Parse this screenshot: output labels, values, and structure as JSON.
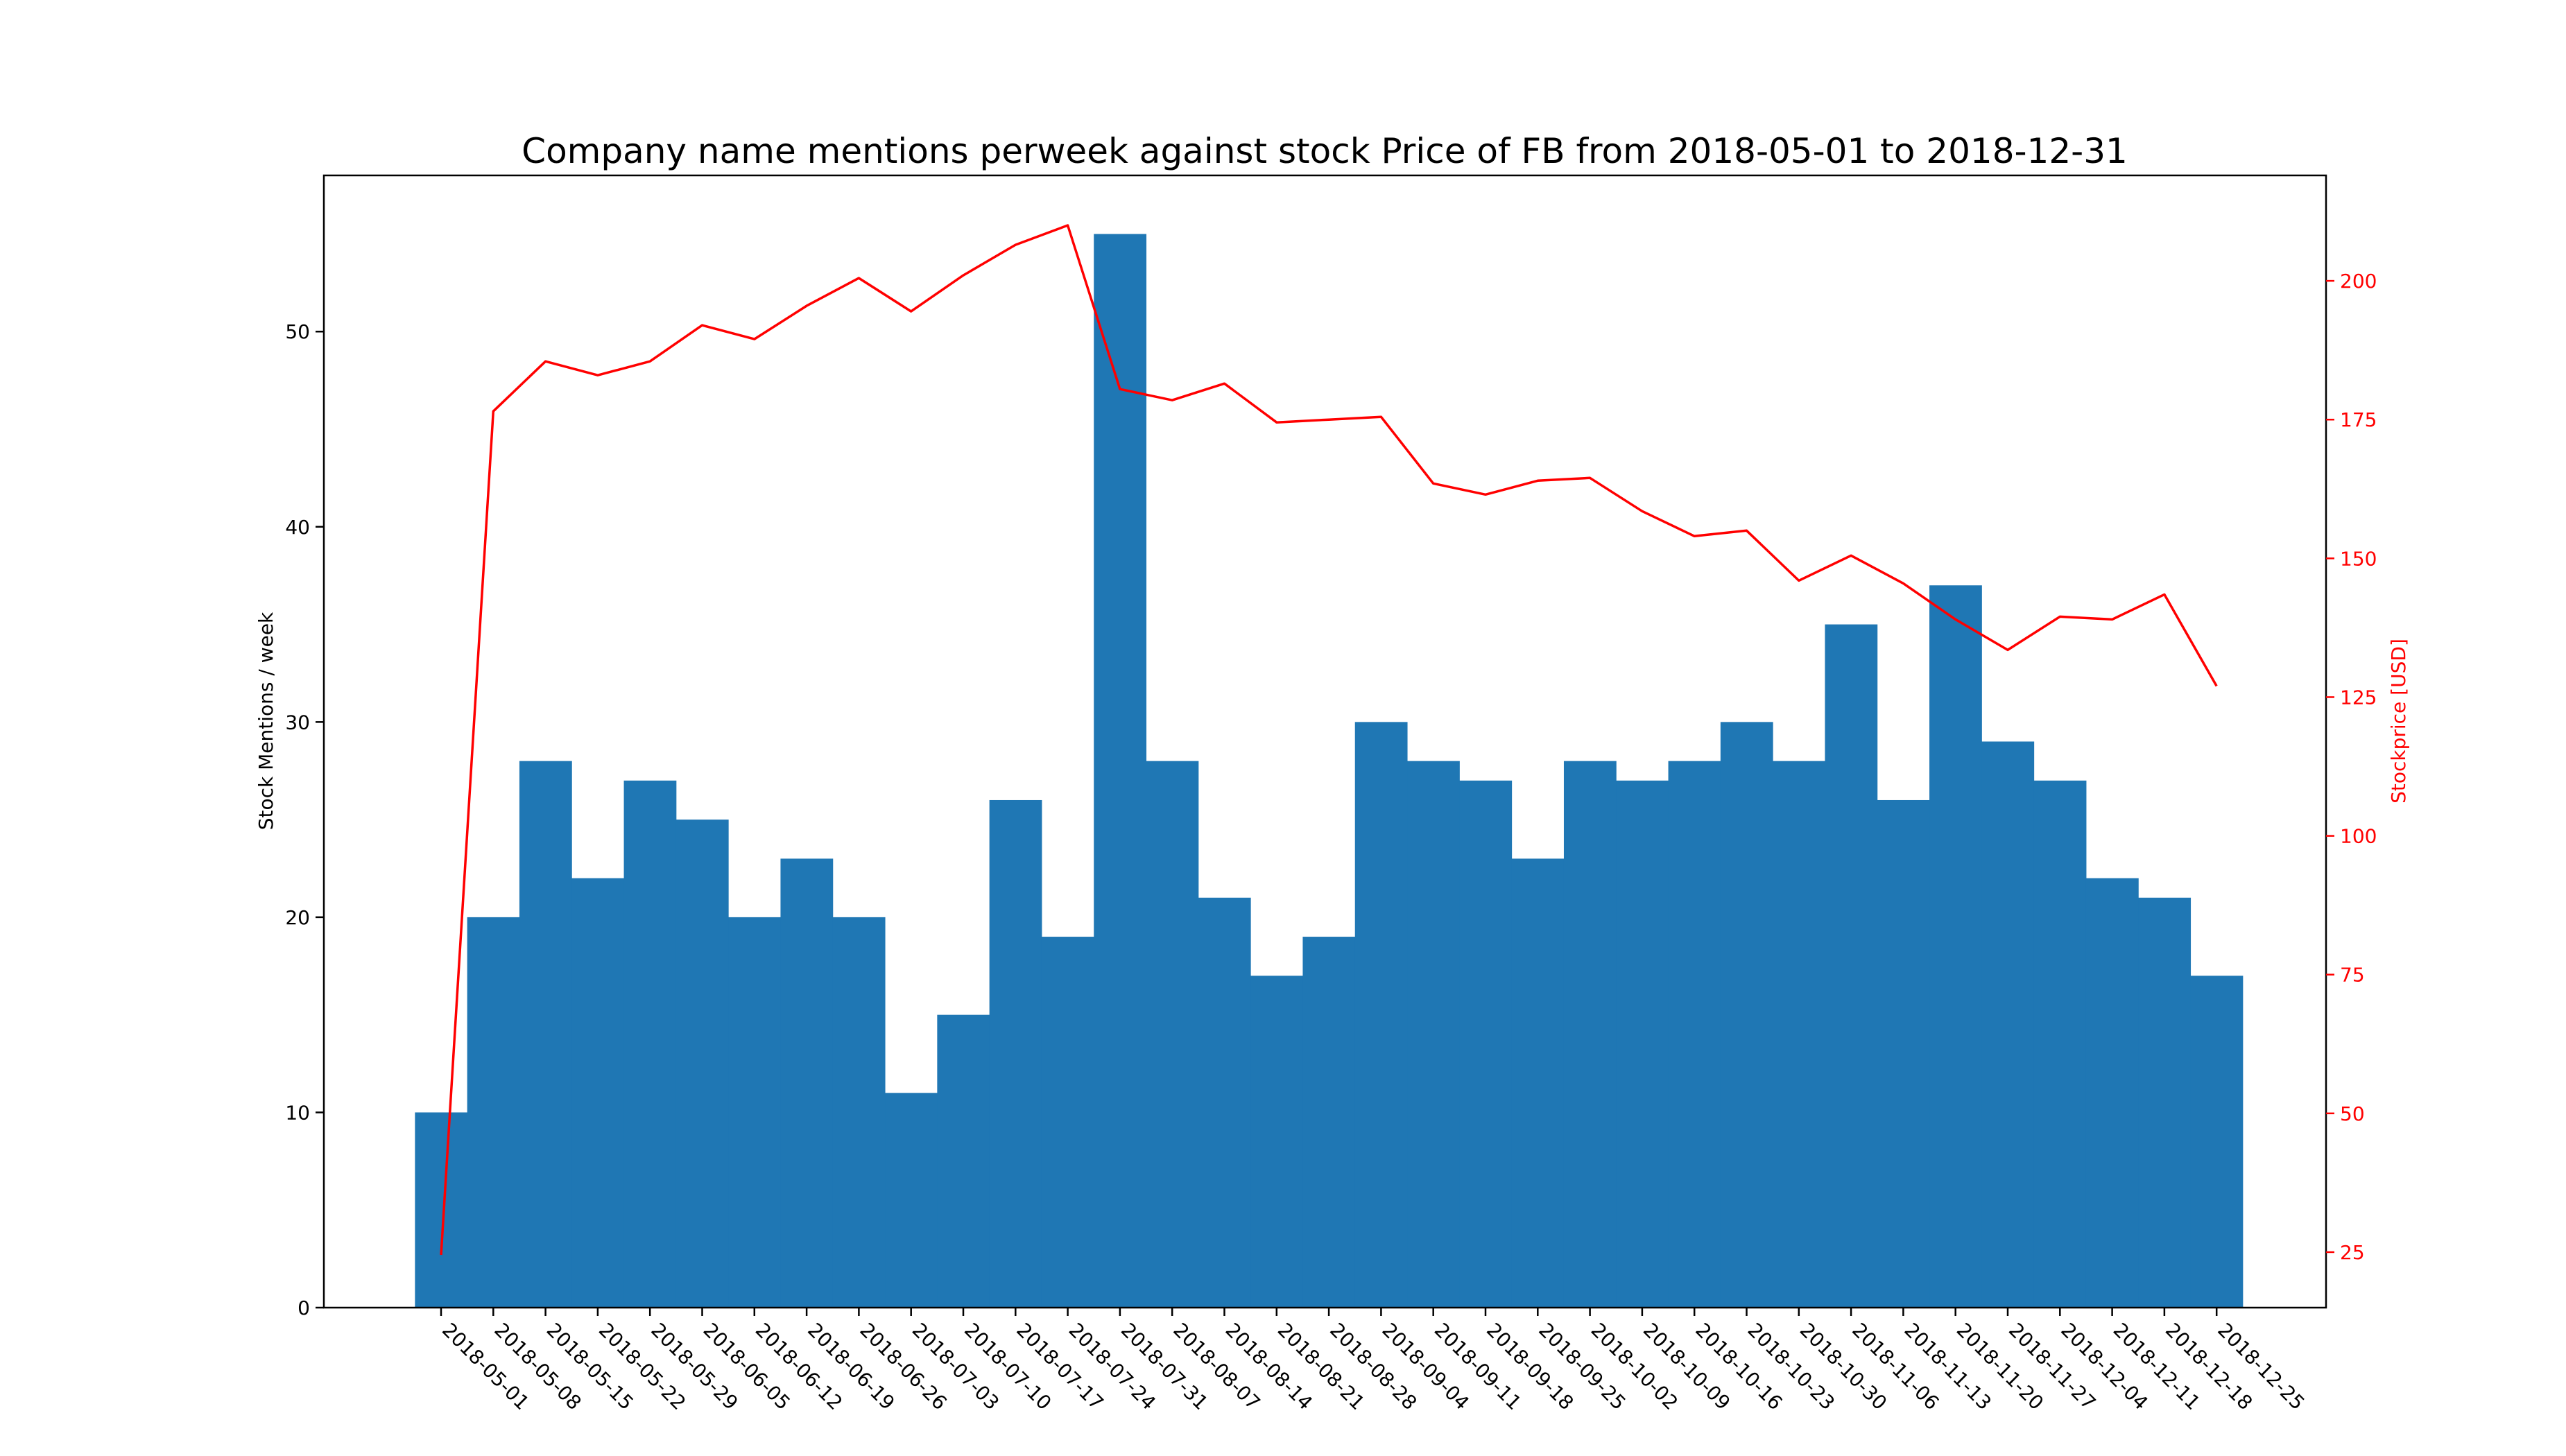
{
  "chart_data": {
    "type": "bar",
    "title": "Company name mentions perweek against stock Price of FB from 2018-05-01 to 2018-12-31",
    "xlabel": "",
    "ylabel": "Stock Mentions / week",
    "ylabel_right": "Stockprice [USD]",
    "ylim": [
      0,
      58
    ],
    "ylim_right": [
      15,
      219
    ],
    "yticks": [
      0,
      10,
      20,
      30,
      40,
      50
    ],
    "yticks_right": [
      25,
      50,
      75,
      100,
      125,
      150,
      175,
      200
    ],
    "bar_color": "#1f77b4",
    "line_color": "#ff0000",
    "categories": [
      "2018-05-01",
      "2018-05-08",
      "2018-05-15",
      "2018-05-22",
      "2018-05-29",
      "2018-06-05",
      "2018-06-12",
      "2018-06-19",
      "2018-06-26",
      "2018-07-03",
      "2018-07-10",
      "2018-07-17",
      "2018-07-24",
      "2018-07-31",
      "2018-08-07",
      "2018-08-14",
      "2018-08-21",
      "2018-08-28",
      "2018-09-04",
      "2018-09-11",
      "2018-09-18",
      "2018-09-25",
      "2018-10-02",
      "2018-10-09",
      "2018-10-16",
      "2018-10-23",
      "2018-10-30",
      "2018-11-06",
      "2018-11-13",
      "2018-11-20",
      "2018-11-27",
      "2018-12-04",
      "2018-12-11",
      "2018-12-18",
      "2018-12-25"
    ],
    "series": [
      {
        "axis": "left",
        "type": "bar",
        "values": [
          10,
          20,
          28,
          22,
          27,
          25,
          20,
          23,
          20,
          11,
          15,
          26,
          19,
          55,
          28,
          21,
          17,
          19,
          30,
          28,
          27,
          23,
          28,
          27,
          28,
          30,
          28,
          35,
          26,
          37,
          29,
          27,
          22,
          21,
          17
        ]
      },
      {
        "axis": "right",
        "type": "line",
        "values": [
          24.5,
          176.5,
          185.5,
          183,
          185.5,
          192,
          189.5,
          195.5,
          200.5,
          194.5,
          201,
          206.5,
          210,
          180.5,
          178.5,
          181.5,
          174.5,
          175,
          175.5,
          163.5,
          161.5,
          164,
          164.5,
          158.5,
          154,
          155,
          146,
          150.5,
          145.5,
          139,
          133.5,
          139.5,
          139,
          143.5,
          127
        ]
      }
    ]
  }
}
